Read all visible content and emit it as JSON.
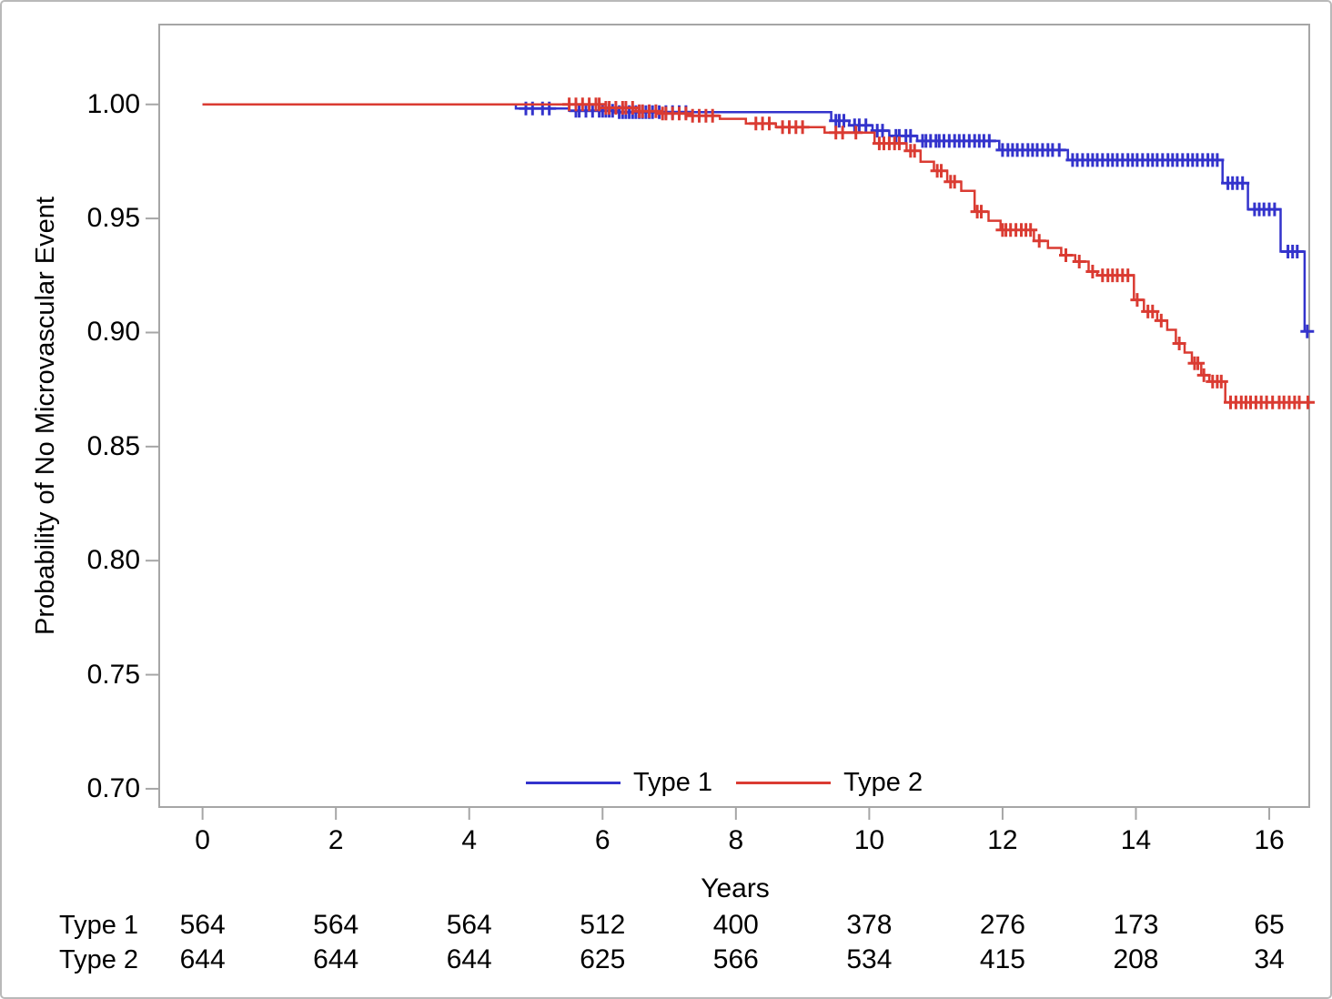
{
  "chart_data": {
    "type": "line",
    "subtype": "kaplan-meier-step",
    "title": "",
    "xlabel": "Years",
    "ylabel": "Probability of No Microvascular Event",
    "grid": false,
    "xlim": [
      -0.65,
      16.6
    ],
    "ylim": [
      0.692,
      1.035
    ],
    "frame_color": "#a6a6a6",
    "xticks": {
      "values": [
        0,
        2,
        4,
        6,
        8,
        10,
        12,
        14,
        16
      ],
      "labels": [
        "0",
        "2",
        "4",
        "6",
        "8",
        "10",
        "12",
        "14",
        "16"
      ]
    },
    "yticks": {
      "values": [
        1.0,
        0.95,
        0.9,
        0.85,
        0.8,
        0.75,
        0.7
      ],
      "labels": [
        "1.00",
        "0.95",
        "0.90",
        "0.85",
        "0.80",
        "0.75",
        "0.70"
      ]
    },
    "legend": {
      "position": "inside-bottom-center",
      "entries": [
        {
          "label": "Type 1",
          "color": "#3333cc"
        },
        {
          "label": "Type 2",
          "color": "#da3b32"
        }
      ]
    },
    "series": [
      {
        "name": "Type 1",
        "color": "#3333cc",
        "steps": [
          [
            0,
            1.0
          ],
          [
            4.7,
            1.0
          ],
          [
            4.7,
            0.9982
          ],
          [
            5.5,
            0.9982
          ],
          [
            5.5,
            0.9972
          ],
          [
            6.2,
            0.9972
          ],
          [
            6.2,
            0.9966
          ],
          [
            9.43,
            0.9966
          ],
          [
            9.43,
            0.9928
          ],
          [
            9.7,
            0.9928
          ],
          [
            9.7,
            0.9908
          ],
          [
            10.05,
            0.9908
          ],
          [
            10.05,
            0.9885
          ],
          [
            10.3,
            0.9885
          ],
          [
            10.3,
            0.9862
          ],
          [
            10.72,
            0.9862
          ],
          [
            10.72,
            0.984
          ],
          [
            11.95,
            0.984
          ],
          [
            11.95,
            0.98
          ],
          [
            12.98,
            0.98
          ],
          [
            12.98,
            0.9756
          ],
          [
            15.3,
            0.9756
          ],
          [
            15.3,
            0.9655
          ],
          [
            15.68,
            0.9655
          ],
          [
            15.68,
            0.954
          ],
          [
            16.17,
            0.954
          ],
          [
            16.17,
            0.9355
          ],
          [
            16.53,
            0.9355
          ],
          [
            16.53,
            0.9005
          ],
          [
            16.6,
            0.9005
          ]
        ],
        "censor_times": [
          4.85,
          4.95,
          5.1,
          5.2,
          5.6,
          5.65,
          5.75,
          5.85,
          5.95,
          6.0,
          6.05,
          6.1,
          6.15,
          6.25,
          6.3,
          6.35,
          6.4,
          6.45,
          6.5,
          6.55,
          6.6,
          6.65,
          6.7,
          6.75,
          6.85,
          6.95,
          7.05,
          7.15,
          7.25,
          9.5,
          9.55,
          9.62,
          9.78,
          9.85,
          9.95,
          10.12,
          10.2,
          10.4,
          10.45,
          10.55,
          10.62,
          10.8,
          10.85,
          10.92,
          11.0,
          11.05,
          11.12,
          11.2,
          11.28,
          11.35,
          11.42,
          11.5,
          11.58,
          11.65,
          11.72,
          11.8,
          12.0,
          12.08,
          12.15,
          12.22,
          12.3,
          12.38,
          12.45,
          12.52,
          12.6,
          12.68,
          12.75,
          12.85,
          13.05,
          13.12,
          13.2,
          13.28,
          13.35,
          13.42,
          13.5,
          13.58,
          13.65,
          13.72,
          13.8,
          13.88,
          13.95,
          14.02,
          14.1,
          14.18,
          14.25,
          14.32,
          14.4,
          14.48,
          14.55,
          14.62,
          14.7,
          14.78,
          14.85,
          14.92,
          15.0,
          15.08,
          15.15,
          15.22,
          15.38,
          15.45,
          15.52,
          15.6,
          15.78,
          15.85,
          15.92,
          16.0,
          16.08,
          16.28,
          16.35,
          16.42,
          16.57
        ]
      },
      {
        "name": "Type 2",
        "color": "#da3b32",
        "steps": [
          [
            0,
            1.0
          ],
          [
            6.05,
            1.0
          ],
          [
            6.05,
            0.9985
          ],
          [
            6.5,
            0.9985
          ],
          [
            6.5,
            0.997
          ],
          [
            6.9,
            0.997
          ],
          [
            6.9,
            0.996
          ],
          [
            7.3,
            0.996
          ],
          [
            7.3,
            0.995
          ],
          [
            7.76,
            0.995
          ],
          [
            7.76,
            0.9937
          ],
          [
            8.15,
            0.9937
          ],
          [
            8.15,
            0.9916
          ],
          [
            8.6,
            0.9916
          ],
          [
            8.6,
            0.99
          ],
          [
            9.33,
            0.99
          ],
          [
            9.33,
            0.9876
          ],
          [
            10.08,
            0.9876
          ],
          [
            10.08,
            0.9829
          ],
          [
            10.56,
            0.9829
          ],
          [
            10.56,
            0.9797
          ],
          [
            10.77,
            0.9797
          ],
          [
            10.77,
            0.9749
          ],
          [
            10.97,
            0.9749
          ],
          [
            10.97,
            0.9709
          ],
          [
            11.17,
            0.9709
          ],
          [
            11.17,
            0.9661
          ],
          [
            11.38,
            0.9661
          ],
          [
            11.38,
            0.9621
          ],
          [
            11.58,
            0.9621
          ],
          [
            11.58,
            0.953
          ],
          [
            11.79,
            0.953
          ],
          [
            11.79,
            0.949
          ],
          [
            11.97,
            0.949
          ],
          [
            11.97,
            0.945
          ],
          [
            12.47,
            0.945
          ],
          [
            12.47,
            0.9402
          ],
          [
            12.68,
            0.9402
          ],
          [
            12.68,
            0.9371
          ],
          [
            12.88,
            0.9371
          ],
          [
            12.88,
            0.9339
          ],
          [
            13.09,
            0.9339
          ],
          [
            13.09,
            0.9311
          ],
          [
            13.29,
            0.9311
          ],
          [
            13.29,
            0.9267
          ],
          [
            13.42,
            0.9267
          ],
          [
            13.42,
            0.9251
          ],
          [
            13.97,
            0.9251
          ],
          [
            13.97,
            0.9143
          ],
          [
            14.12,
            0.9143
          ],
          [
            14.12,
            0.9092
          ],
          [
            14.32,
            0.9092
          ],
          [
            14.32,
            0.9052
          ],
          [
            14.47,
            0.9052
          ],
          [
            14.47,
            0.9012
          ],
          [
            14.6,
            0.9012
          ],
          [
            14.6,
            0.8952
          ],
          [
            14.73,
            0.8952
          ],
          [
            14.73,
            0.8912
          ],
          [
            14.84,
            0.8912
          ],
          [
            14.84,
            0.8865
          ],
          [
            14.98,
            0.8865
          ],
          [
            14.98,
            0.8813
          ],
          [
            15.1,
            0.8813
          ],
          [
            15.1,
            0.8785
          ],
          [
            15.34,
            0.8785
          ],
          [
            15.34,
            0.8694
          ],
          [
            16.6,
            0.8694
          ]
        ],
        "censor_times": [
          5.5,
          5.6,
          5.7,
          5.8,
          5.9,
          5.95,
          6.05,
          6.1,
          6.2,
          6.3,
          6.35,
          6.45,
          6.55,
          6.6,
          6.7,
          6.8,
          6.9,
          6.95,
          7.05,
          7.15,
          7.25,
          7.35,
          7.45,
          7.55,
          7.65,
          8.3,
          8.4,
          8.5,
          8.7,
          8.8,
          8.9,
          9.0,
          9.5,
          9.6,
          9.8,
          10.15,
          10.22,
          10.3,
          10.38,
          10.45,
          10.62,
          10.68,
          11.02,
          11.08,
          11.22,
          11.28,
          11.62,
          11.68,
          12.0,
          12.05,
          12.12,
          12.2,
          12.28,
          12.35,
          12.42,
          12.55,
          12.95,
          13.15,
          13.35,
          13.5,
          13.58,
          13.65,
          13.72,
          13.8,
          13.88,
          14.02,
          14.18,
          14.25,
          14.38,
          14.65,
          14.88,
          14.93,
          15.02,
          15.15,
          15.22,
          15.28,
          15.42,
          15.5,
          15.58,
          15.65,
          15.72,
          15.8,
          15.88,
          15.96,
          16.05,
          16.15,
          16.22,
          16.3,
          16.38,
          16.45,
          16.58
        ]
      }
    ],
    "risk_table": {
      "times": [
        0,
        2,
        4,
        6,
        8,
        10,
        12,
        14,
        16
      ],
      "rows": [
        {
          "label": "Type 1",
          "counts": [
            "564",
            "564",
            "564",
            "512",
            "400",
            "378",
            "276",
            "173",
            "65"
          ]
        },
        {
          "label": "Type 2",
          "counts": [
            "644",
            "644",
            "644",
            "625",
            "566",
            "534",
            "415",
            "208",
            "34"
          ]
        }
      ]
    }
  }
}
